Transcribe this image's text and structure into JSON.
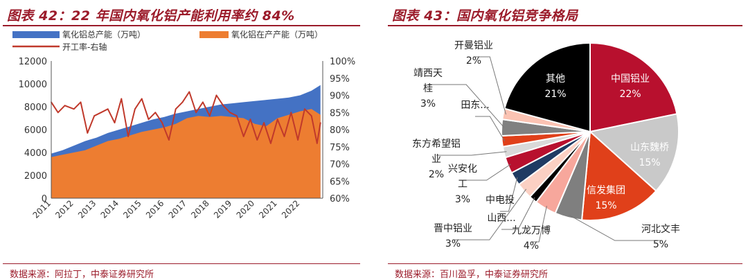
{
  "left": {
    "title": "图表 42：22 年国内氧化铝产能利用率约 84%",
    "source": "数据来源：阿拉丁，中泰证券研究所"
  },
  "right": {
    "title": "图表 43：国内氧化铝竞争格局",
    "source": "数据来源：百川盈孚，中泰证券研究所"
  },
  "colors": {
    "title": "#9b1b2a",
    "total_capacity": "#4472c4",
    "running_capacity": "#ed7d31",
    "utilization": "#c0392b"
  },
  "chart_data": [
    {
      "type": "area",
      "title": "",
      "legend_position": "top",
      "x_ticks": [
        "2011",
        "2012",
        "2013",
        "2014",
        "2015",
        "2016",
        "2017",
        "2018",
        "2019",
        "2020",
        "2021",
        "2022"
      ],
      "x_range": [
        2011.0,
        2023.0
      ],
      "y_left": {
        "ticks": [
          "0",
          "2000",
          "4000",
          "6000",
          "8000",
          "10000",
          "12000"
        ],
        "range": [
          0,
          12000
        ]
      },
      "y_right": {
        "ticks": [
          "60%",
          "65%",
          "70%",
          "75%",
          "80%",
          "85%",
          "90%",
          "95%",
          "100%"
        ],
        "range": [
          60,
          100
        ]
      },
      "series": [
        {
          "name": "氧化铝总产能（万吨）",
          "kind": "area",
          "axis": "left",
          "x": [
            2011.0,
            2011.5,
            2012.0,
            2012.5,
            2013.0,
            2013.5,
            2014.0,
            2014.5,
            2015.0,
            2015.5,
            2016.0,
            2016.5,
            2017.0,
            2017.5,
            2018.0,
            2018.5,
            2019.0,
            2019.5,
            2020.0,
            2020.5,
            2021.0,
            2021.5,
            2022.0,
            2022.5,
            2022.9
          ],
          "values": [
            3900,
            4200,
            4600,
            5000,
            5300,
            5700,
            6000,
            6300,
            6600,
            6900,
            7100,
            7400,
            7600,
            7800,
            8000,
            8200,
            8300,
            8400,
            8500,
            8600,
            8700,
            8800,
            9000,
            9400,
            9900
          ]
        },
        {
          "name": "氧化铝在产产能（万吨）",
          "kind": "area",
          "axis": "left",
          "x": [
            2011.0,
            2011.5,
            2012.0,
            2012.5,
            2013.0,
            2013.5,
            2014.0,
            2014.5,
            2015.0,
            2015.5,
            2016.0,
            2016.5,
            2017.0,
            2017.5,
            2018.0,
            2018.5,
            2019.0,
            2019.5,
            2020.0,
            2020.5,
            2021.0,
            2021.5,
            2022.0,
            2022.5,
            2022.9
          ],
          "values": [
            3600,
            3800,
            4000,
            4200,
            4600,
            5000,
            5200,
            5500,
            5800,
            6000,
            6200,
            6500,
            7000,
            7200,
            7100,
            7200,
            7100,
            7000,
            6500,
            6300,
            7000,
            7300,
            7600,
            7800,
            7300
          ]
        },
        {
          "name": "开工率-右轴",
          "kind": "line",
          "axis": "right",
          "x": [
            2011.0,
            2011.3,
            2011.6,
            2012.0,
            2012.3,
            2012.6,
            2012.9,
            2013.2,
            2013.5,
            2013.8,
            2014.1,
            2014.4,
            2014.7,
            2015.0,
            2015.3,
            2015.6,
            2015.9,
            2016.2,
            2016.5,
            2016.8,
            2017.1,
            2017.4,
            2017.7,
            2018.0,
            2018.3,
            2018.6,
            2018.9,
            2019.2,
            2019.5,
            2019.8,
            2020.1,
            2020.4,
            2020.7,
            2021.0,
            2021.3,
            2021.6,
            2021.9,
            2022.2,
            2022.5,
            2022.75,
            2022.9
          ],
          "values": [
            88,
            85,
            87,
            86,
            88,
            79,
            84,
            85,
            86,
            82,
            89,
            78,
            86,
            89,
            83,
            85,
            82,
            77,
            86,
            88,
            91,
            85,
            88,
            84,
            90,
            87,
            85,
            84,
            78,
            83,
            77,
            82,
            76,
            83,
            78,
            85,
            77,
            86,
            84,
            76,
            82
          ]
        }
      ]
    },
    {
      "type": "pie",
      "title": "",
      "slices": [
        {
          "name": "中国铝业",
          "value": 22,
          "label": "22%",
          "color": "#b8102e"
        },
        {
          "name": "山东魏桥",
          "value": 15,
          "label": "15%",
          "color": "#c9c9c9"
        },
        {
          "name": "信发集团",
          "value": 15,
          "label": "15%",
          "color": "#e0401a"
        },
        {
          "name": "河北文丰",
          "value": 5,
          "label": "5%",
          "color": "#7f7f7f"
        },
        {
          "name": "九龙万博",
          "value": 4,
          "label": "4%",
          "color": "#f7a79c"
        },
        {
          "name": "山西",
          "value": 1.5,
          "label": "",
          "color": "#000000"
        },
        {
          "name": "晋中铝业",
          "value": 3,
          "label": "3%",
          "color": "#fbd0c3"
        },
        {
          "name": "中电投",
          "value": 2.5,
          "label": "",
          "color": "#1f3b63"
        },
        {
          "name": "兴安化工",
          "value": 3,
          "label": "3%",
          "color": "#b8102e"
        },
        {
          "name": "东方希望铝业",
          "value": 2,
          "label": "2%",
          "color": "#d9d9d9"
        },
        {
          "name": "田东",
          "value": 2,
          "label": "",
          "color": "#e0401a"
        },
        {
          "name": "靖西天桂",
          "value": 3,
          "label": "3%",
          "color": "#808080"
        },
        {
          "name": "开曼铝业",
          "value": 2,
          "label": "2%",
          "color": "#fbc3b3"
        },
        {
          "name": "其他",
          "value": 21,
          "label": "21%",
          "color": "#000000"
        }
      ]
    }
  ],
  "pie_labels": [
    {
      "name": "中国铝业",
      "text": "中国铝业",
      "pct": "22%",
      "color": "#ffffff"
    },
    {
      "name": "山东魏桥",
      "text": "山东魏桥",
      "pct": "15%",
      "color": "#ffffff"
    },
    {
      "name": "信发集团",
      "text": "信发集团",
      "pct": "15%",
      "color": "#ffffff"
    },
    {
      "name": "其他",
      "text": "其他",
      "pct": "21%",
      "color": "#ffffff"
    },
    {
      "name": "河北文丰",
      "text": "河北文丰",
      "pct": "5%",
      "color": "#222222"
    },
    {
      "name": "九龙万博",
      "text": "九龙万博",
      "pct": "4%",
      "color": "#222222"
    },
    {
      "name": "山西",
      "text": "山西...",
      "pct": "",
      "color": "#222222"
    },
    {
      "name": "晋中铝业",
      "text": "晋中铝业",
      "pct": "3%",
      "color": "#222222"
    },
    {
      "name": "中电投",
      "text": "中电投",
      "pct": "",
      "color": "#222222"
    },
    {
      "name": "兴安化工",
      "text": "兴安化",
      "text2": "工",
      "pct": "3%",
      "color": "#222222"
    },
    {
      "name": "东方希望铝业",
      "text": "东方希望铝",
      "text2": "业",
      "pct": "2%",
      "color": "#222222"
    },
    {
      "name": "田东",
      "text": "田东...",
      "pct": "",
      "color": "#222222"
    },
    {
      "name": "靖西天桂",
      "text": "靖西天",
      "text2": "桂",
      "pct": "3%",
      "color": "#222222"
    },
    {
      "name": "开曼铝业",
      "text": "开曼铝业",
      "pct": "2%",
      "color": "#222222"
    }
  ]
}
